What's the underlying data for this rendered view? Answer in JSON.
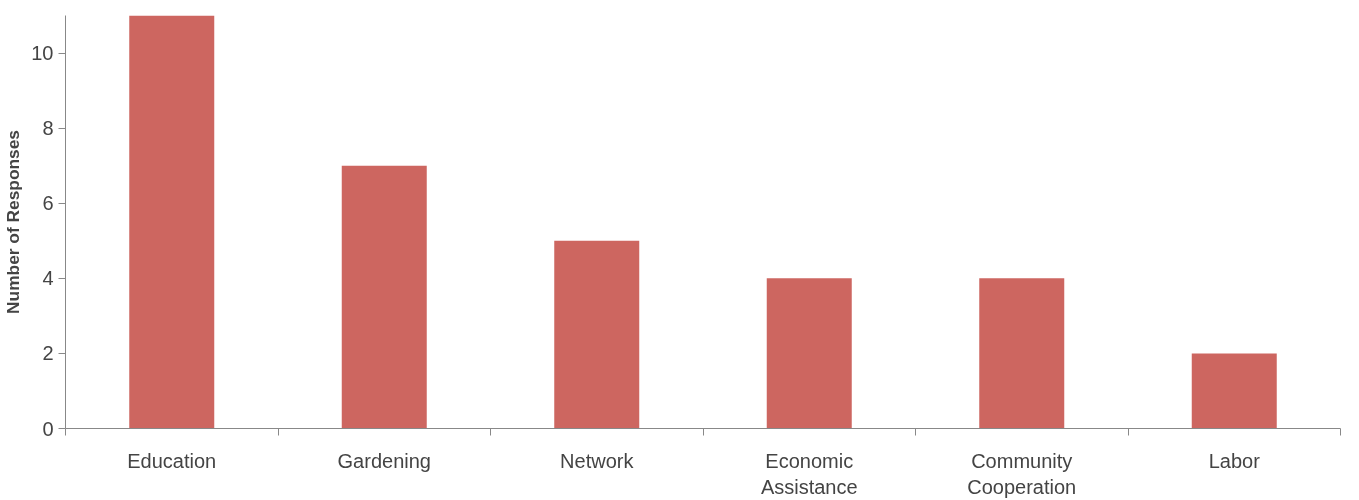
{
  "chart_data": {
    "type": "bar",
    "ylabel": "Number of Responses",
    "categories": [
      "Education",
      "Gardening",
      "Network",
      "Economic Assistance",
      "Community Cooperation",
      "Labor"
    ],
    "values": [
      11,
      7,
      5,
      4,
      4,
      2
    ],
    "color": "#cd6660",
    "ylim": [
      0,
      11
    ],
    "yticks": [
      0,
      2,
      4,
      6,
      8,
      10
    ],
    "grid": false
  }
}
